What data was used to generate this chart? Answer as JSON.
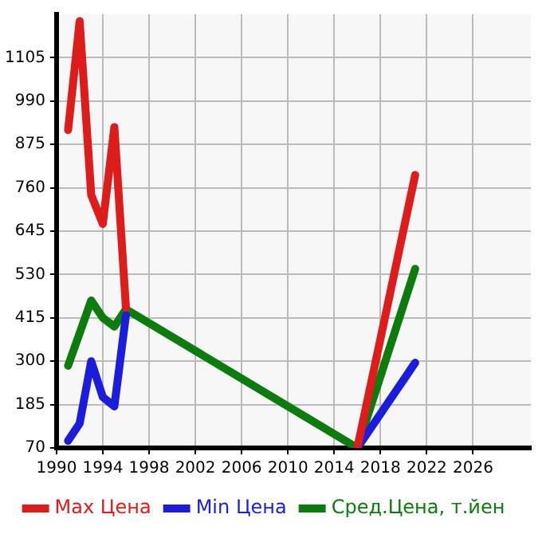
{
  "chart_data": {
    "type": "line",
    "series": [
      {
        "name": "Max Цена",
        "color": "#dd1c1c",
        "x": [
          1991,
          1992,
          1993,
          1994,
          1995,
          1996,
          2006,
          2016,
          2021
        ],
        "values": [
          913,
          1202,
          741,
          664,
          921,
          442,
          null,
          70,
          794
        ]
      },
      {
        "name": "Min Цена",
        "color": "#1c1cdd",
        "x": [
          1991,
          1992,
          1993,
          1994,
          1995,
          1996,
          2006,
          2016,
          2021
        ],
        "values": [
          89,
          135,
          300,
          205,
          180,
          422,
          null,
          70,
          296
        ]
      },
      {
        "name": "Сред.Цена, т.йен",
        "color": "#0c7c0c",
        "x": [
          1991,
          1993,
          1994,
          1995,
          1996,
          2016,
          2021
        ],
        "values": [
          288,
          461,
          415,
          392,
          438,
          70,
          545
        ]
      }
    ],
    "xlim": [
      1990,
      2031
    ],
    "xticks": [
      1990,
      1994,
      1998,
      2002,
      2006,
      2010,
      2014,
      2018,
      2022,
      2026
    ],
    "ylim": [
      70,
      1220
    ],
    "yticks": [
      70,
      185,
      300,
      415,
      530,
      645,
      760,
      875,
      990,
      1105
    ],
    "grid": true,
    "legend": "bottom",
    "marker": "none",
    "line_style": "solid"
  }
}
